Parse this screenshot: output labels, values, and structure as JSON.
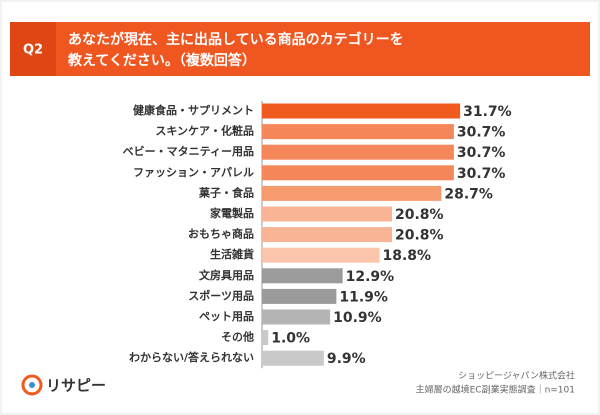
{
  "chart_data": {
    "type": "bar",
    "orientation": "horizontal",
    "question": "Q2",
    "title": [
      "あなたが現在、主に出品している商品のカテゴリーを",
      "教えてください。（複数回答）"
    ],
    "categories": [
      "健康食品・サプリメント",
      "スキンケア・化粧品",
      "ベビー・マタニティー用品",
      "ファッション・アパレル",
      "菓子・食品",
      "家電製品",
      "おもちゃ商品",
      "生活雑貨",
      "文房具用品",
      "スポーツ用品",
      "ペット用品",
      "その他",
      "わからない/答えられない"
    ],
    "values": [
      31.7,
      30.7,
      30.7,
      30.7,
      28.7,
      20.8,
      20.8,
      18.8,
      12.9,
      11.9,
      10.9,
      1.0,
      9.9
    ],
    "value_labels": [
      "31.7%",
      "30.7%",
      "30.7%",
      "30.7%",
      "28.7%",
      "20.8%",
      "20.8%",
      "18.8%",
      "12.9%",
      "11.9%",
      "10.9%",
      "1.0%",
      "9.9%"
    ],
    "colors": [
      "#f05a1e",
      "#f5875a",
      "#f5875a",
      "#f5875a",
      "#f69a70",
      "#f8b495",
      "#f8b495",
      "#fac5aa",
      "#9b9b9b",
      "#9b9b9b",
      "#b4b4b4",
      "#c9c9c9",
      "#c9c9c9"
    ],
    "source": [
      "ショッピージャパン株式会社",
      "主婦層の越境EC副業実態調査｜n=101"
    ],
    "logo": "リサピー"
  }
}
